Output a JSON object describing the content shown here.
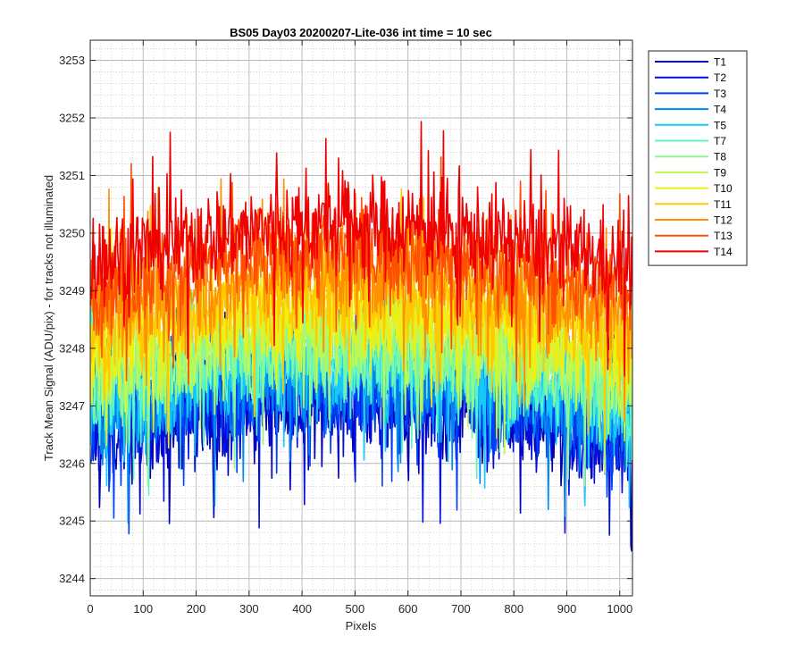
{
  "chart_data": {
    "type": "line",
    "title": "BS05 Day03 20200207-Lite-036 int time = 10 sec",
    "xlabel": "Pixels",
    "ylabel": "Track Mean Signal (ADU/pix) - for tracks not illuminated",
    "xlim": [
      0,
      1024
    ],
    "ylim": [
      3243.7,
      3253.35
    ],
    "xticks": [
      0,
      100,
      200,
      300,
      400,
      500,
      600,
      700,
      800,
      900,
      1000
    ],
    "yticks": [
      3244,
      3245,
      3246,
      3247,
      3248,
      3249,
      3250,
      3251,
      3252,
      3253
    ],
    "grid": true,
    "minor_grid": true,
    "legend_position": "outside-top-right",
    "series": [
      {
        "name": "T1",
        "color": "#0000B4",
        "mean": 3246.75,
        "spread": 0.85
      },
      {
        "name": "T2",
        "color": "#0010DC",
        "mean": 3246.85,
        "spread": 0.85
      },
      {
        "name": "T3",
        "color": "#0040F8",
        "mean": 3247.0,
        "spread": 0.85
      },
      {
        "name": "T4",
        "color": "#0088F0",
        "mean": 3247.2,
        "spread": 0.85
      },
      {
        "name": "T5",
        "color": "#18C8F8",
        "mean": 3247.4,
        "spread": 0.85
      },
      {
        "name": "T7",
        "color": "#5CF5C8",
        "mean": 3247.6,
        "spread": 0.85
      },
      {
        "name": "T8",
        "color": "#8CF890",
        "mean": 3247.8,
        "spread": 0.85
      },
      {
        "name": "T9",
        "color": "#C0F850",
        "mean": 3248.05,
        "spread": 0.85
      },
      {
        "name": "T10",
        "color": "#F0F010",
        "mean": 3248.35,
        "spread": 0.85
      },
      {
        "name": "T11",
        "color": "#FFC800",
        "mean": 3248.65,
        "spread": 0.85
      },
      {
        "name": "T12",
        "color": "#FF9000",
        "mean": 3249.0,
        "spread": 0.85
      },
      {
        "name": "T13",
        "color": "#FF5000",
        "mean": 3249.4,
        "spread": 0.85
      },
      {
        "name": "T14",
        "color": "#F00000",
        "mean": 3249.85,
        "spread": 0.85
      }
    ]
  }
}
